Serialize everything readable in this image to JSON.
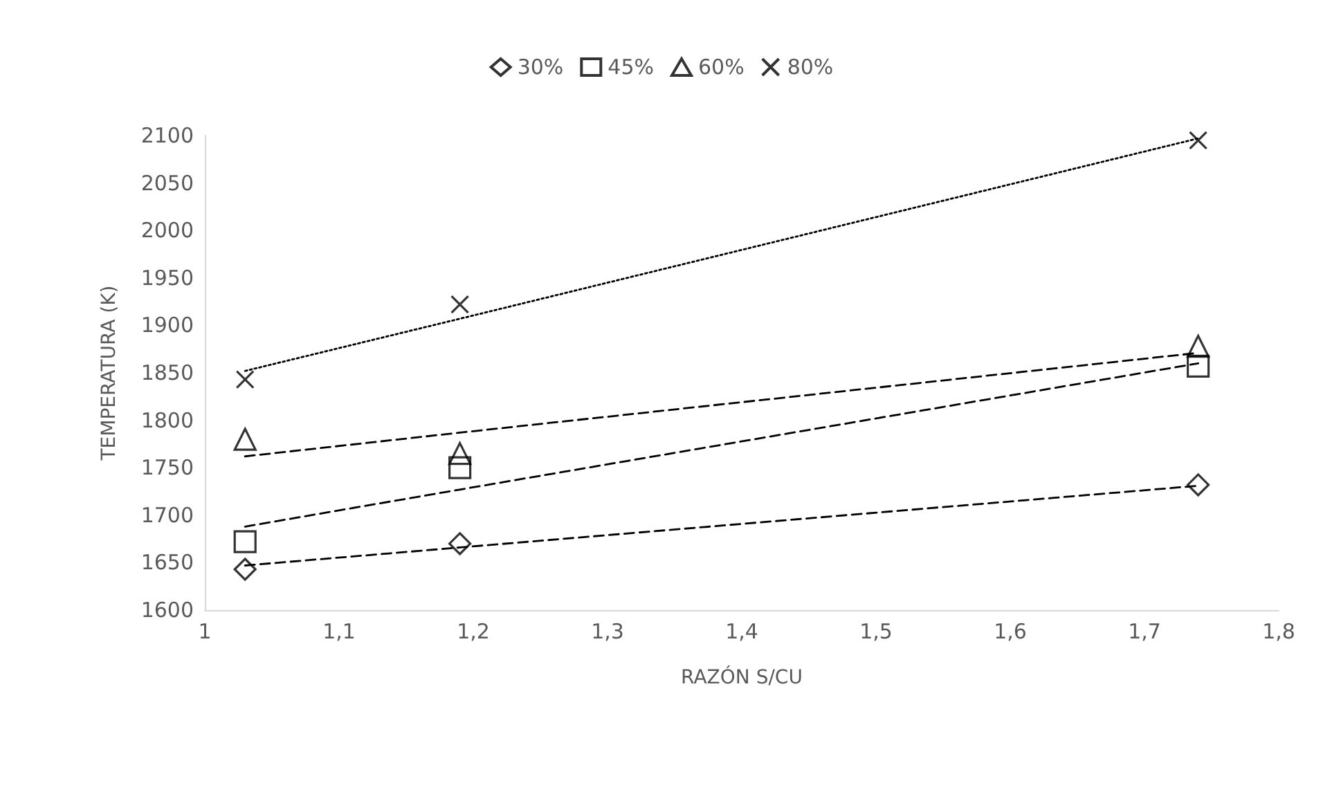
{
  "chart_data": {
    "type": "scatter",
    "xlabel": "RAZÓN S/CU",
    "ylabel": "TEMPERATURA (K)",
    "x": [
      1.03,
      1.19,
      1.74
    ],
    "xlim": [
      1,
      1.8
    ],
    "xticks": [
      1,
      {
        "value": 1.1,
        "label": "1,1"
      },
      {
        "value": 1.2,
        "label": "1,2"
      },
      {
        "value": 1.3,
        "label": "1,3"
      },
      {
        "value": 1.4,
        "label": "1,4"
      },
      {
        "value": 1.5,
        "label": "1,5"
      },
      {
        "value": 1.6,
        "label": "1,6"
      },
      {
        "value": 1.7,
        "label": "1,7"
      },
      {
        "value": 1.8,
        "label": "1,8"
      }
    ],
    "ylim": [
      1600,
      2100
    ],
    "yticks": [
      1600,
      1650,
      1700,
      1750,
      1800,
      1850,
      1900,
      1950,
      2000,
      2050,
      2100
    ],
    "grid": false,
    "legend": "top",
    "series": [
      {
        "name": "30%",
        "color": "#000000",
        "marker": "diamond",
        "values": [
          1643,
          1670,
          1732
        ]
      },
      {
        "name": "45%",
        "color": "#000000",
        "marker": "square",
        "values": [
          1672,
          1750,
          1857
        ]
      },
      {
        "name": "60%",
        "color": "#000000",
        "marker": "triangle",
        "values": [
          1780,
          1765,
          1878
        ]
      },
      {
        "name": "80%",
        "color": "#000000",
        "marker": "cross",
        "values": [
          1843,
          1922,
          2095
        ]
      },
      {
        "type": "line",
        "color": "#000000",
        "line_style": "dashed",
        "marker": "none",
        "values": [
          1647,
          1666,
          1731
        ]
      },
      {
        "type": "line",
        "color": "#000000",
        "line_style": "dashed",
        "marker": "none",
        "values": [
          1688,
          1727,
          1860
        ]
      },
      {
        "type": "line",
        "color": "#000000",
        "line_style": "dashed",
        "marker": "none",
        "values": [
          1762,
          1787,
          1871
        ]
      },
      {
        "type": "line",
        "color": "#000000",
        "line_style": "dotted",
        "marker": "none",
        "values": [
          1852,
          1907,
          2097
        ]
      }
    ]
  }
}
